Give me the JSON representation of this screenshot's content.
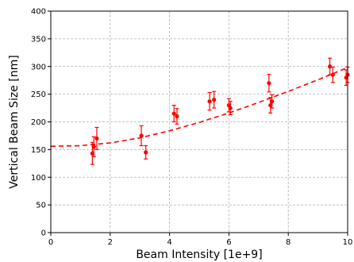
{
  "chart_data": {
    "type": "scatter",
    "title": "",
    "xlabel": "Beam Intensity [1e+9]",
    "ylabel": "Vertical Beam Size [nm]",
    "xlim": [
      0,
      10
    ],
    "ylim": [
      0,
      400
    ],
    "x_ticks": [
      0,
      2,
      4,
      6,
      8,
      10
    ],
    "y_ticks": [
      0,
      50,
      100,
      150,
      200,
      250,
      300,
      350,
      400
    ],
    "x_tick_labels": [
      "0",
      "2",
      "4",
      "6",
      "8",
      "10"
    ],
    "y_tick_labels": [
      "0",
      "50",
      "100",
      "150",
      "200",
      "250",
      "300",
      "350",
      "400"
    ],
    "grid": true,
    "colors": {
      "data": "#ff0000",
      "fit": "#ff0000",
      "grid": "#b0b0b0"
    },
    "series": [
      {
        "kind": "errorbar-points",
        "points": [
          {
            "x": 1.4,
            "y": 143,
            "err": 20
          },
          {
            "x": 1.45,
            "y": 155,
            "err": 18
          },
          {
            "x": 1.55,
            "y": 170,
            "err": 20
          },
          {
            "x": 3.05,
            "y": 175,
            "err": 18
          },
          {
            "x": 3.2,
            "y": 145,
            "err": 12
          },
          {
            "x": 4.15,
            "y": 215,
            "err": 15
          },
          {
            "x": 4.25,
            "y": 210,
            "err": 14
          },
          {
            "x": 5.35,
            "y": 237,
            "err": 16
          },
          {
            "x": 5.5,
            "y": 240,
            "err": 15
          },
          {
            "x": 6.0,
            "y": 230,
            "err": 12
          },
          {
            "x": 6.05,
            "y": 225,
            "err": 12
          },
          {
            "x": 7.35,
            "y": 270,
            "err": 16
          },
          {
            "x": 7.4,
            "y": 230,
            "err": 14
          },
          {
            "x": 7.45,
            "y": 237,
            "err": 12
          },
          {
            "x": 9.4,
            "y": 300,
            "err": 15
          },
          {
            "x": 9.5,
            "y": 285,
            "err": 14
          },
          {
            "x": 9.95,
            "y": 280,
            "err": 14
          },
          {
            "x": 10.0,
            "y": 285,
            "err": 14
          }
        ]
      },
      {
        "kind": "fit-curve",
        "style": "dashed",
        "x": [
          0,
          1,
          2,
          3,
          4,
          5,
          6,
          7,
          8,
          9,
          10
        ],
        "y": [
          156,
          157,
          162,
          171,
          184,
          199,
          216,
          235,
          255,
          276,
          298
        ]
      }
    ]
  }
}
